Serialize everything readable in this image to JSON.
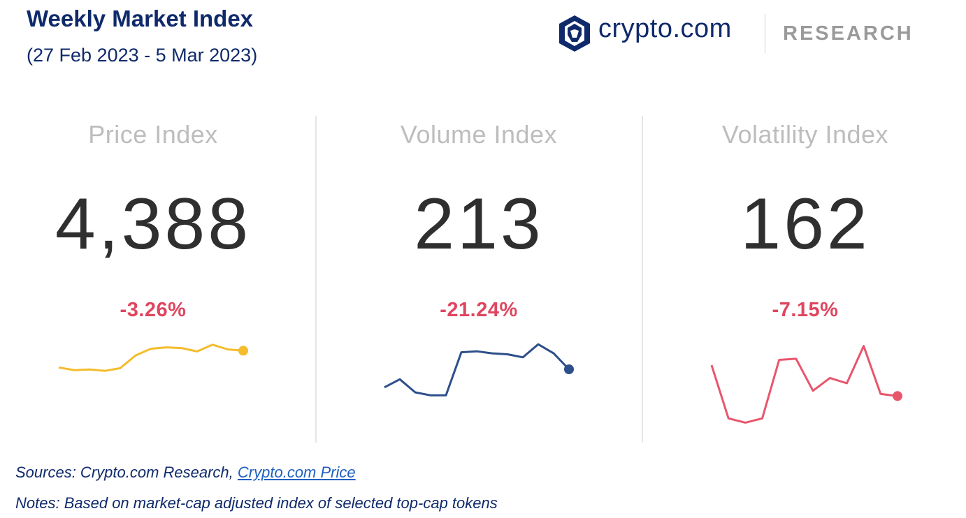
{
  "header": {
    "title": "Weekly Market Index",
    "subtitle": "(27 Feb 2023 - 5 Mar 2023)",
    "logo_word": "crypto.com",
    "logo_research": "RESEARCH",
    "logo_icon": "crypto-com-lion-shield-icon"
  },
  "colors": {
    "navy": "#0f2a6b",
    "price_line": "#f5bc2c",
    "volume_line": "#2d4f8a",
    "volatility_line": "#e8566c",
    "change_negative": "#e0455f"
  },
  "chart_data": [
    {
      "type": "line",
      "title": "Price Index",
      "value": "4,388",
      "change": "-3.26%",
      "values": [
        55,
        51,
        52,
        50,
        54,
        73,
        83,
        85,
        84,
        79,
        89,
        82,
        80
      ]
    },
    {
      "type": "line",
      "title": "Volume Index",
      "value": "213",
      "change": "-21.24%",
      "values": [
        40,
        48,
        35,
        32,
        32,
        75,
        76,
        74,
        73,
        70,
        83,
        74,
        58
      ]
    },
    {
      "type": "line",
      "title": "Volatility Index",
      "value": "162",
      "change": "-7.15%",
      "values": [
        62,
        12,
        8,
        12,
        67,
        68,
        38,
        50,
        45,
        80,
        35,
        33
      ]
    }
  ],
  "footer": {
    "sources_prefix": "Sources: Crypto.com Research, ",
    "sources_link": "Crypto.com Price",
    "notes": "Notes: Based on market-cap adjusted index of selected top-cap tokens"
  }
}
